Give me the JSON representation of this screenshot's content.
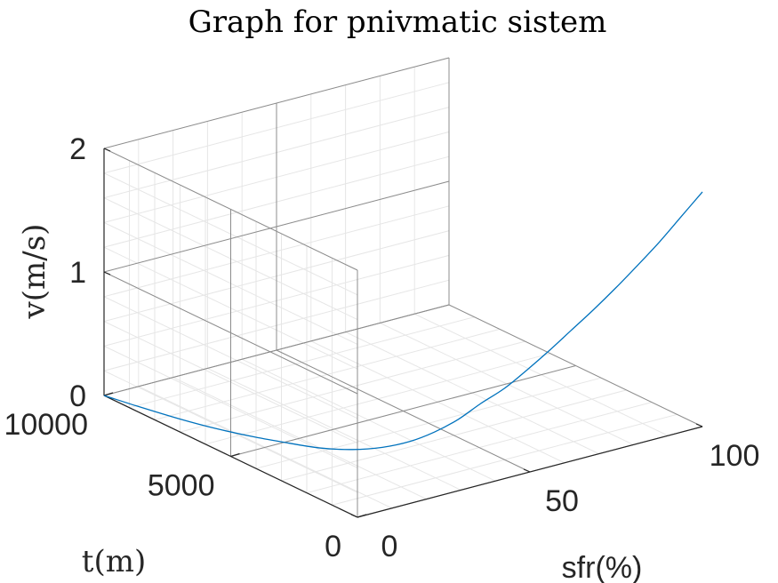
{
  "chart_data": {
    "type": "line",
    "projection": "3d",
    "title": "Graph for pnivmatic sistem",
    "xlabel": "sfr(%)",
    "ylabel": "t(m)",
    "zlabel": "v(m/s)",
    "xlim": [
      0,
      100
    ],
    "ylim": [
      0,
      10000
    ],
    "zlim": [
      0,
      2
    ],
    "xticks": [
      "0",
      "50",
      "100"
    ],
    "yticks": [
      "0",
      "5000",
      "10000"
    ],
    "zticks": [
      "0",
      "1",
      "2"
    ],
    "grid": true,
    "minor_grid": true,
    "series": [
      {
        "color": "#0072BD",
        "x": [
          0,
          2,
          5,
          8,
          12,
          16,
          20,
          25,
          30,
          35,
          40,
          45,
          50,
          55,
          60,
          65,
          70,
          75,
          80,
          85,
          90,
          95,
          100
        ],
        "y": [
          10000,
          9000,
          7700,
          6700,
          5700,
          4900,
          4200,
          3600,
          3100,
          2700,
          2400,
          2150,
          1950,
          1700,
          1500,
          1300,
          1100,
          900,
          700,
          500,
          320,
          160,
          0
        ],
        "z": [
          0,
          0,
          0,
          0,
          0,
          0,
          0,
          0.01,
          0.04,
          0.09,
          0.16,
          0.25,
          0.36,
          0.47,
          0.6,
          0.74,
          0.89,
          1.04,
          1.2,
          1.37,
          1.54,
          1.72,
          1.9
        ]
      }
    ]
  }
}
